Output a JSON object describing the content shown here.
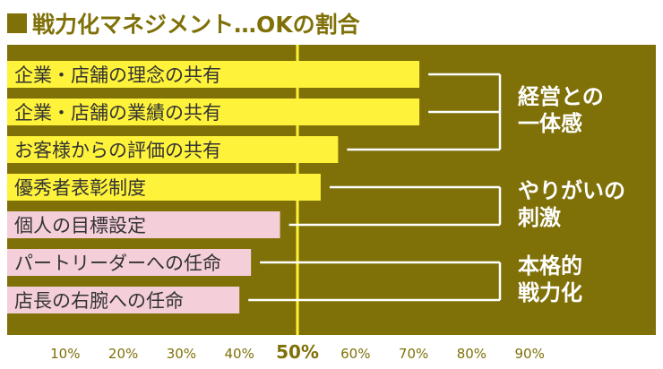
{
  "title": "戦力化マネジメント…OKの割合",
  "colors": {
    "background": "#7f7008",
    "page": "#ffffff",
    "title": "#7f7008",
    "bar_yellow": "#fef23a",
    "bar_pink": "#f4cfda",
    "midline": "#fef23a",
    "bracket": "#ffffff",
    "group_label": "#ffffff",
    "tick_label": "#7f7008",
    "bar_label": "#333333"
  },
  "chart_data": {
    "type": "bar",
    "orientation": "horizontal",
    "title": "戦力化マネジメント…OKの割合",
    "categories": [
      "企業・店舗の理念の共有",
      "企業・店舗の業績の共有",
      "お客様からの評価の共有",
      "優秀者表彰制度",
      "個人の目標設定",
      "パートリーダーへの任命",
      "店長の右腕への任命"
    ],
    "values": [
      71,
      71,
      57,
      54,
      47,
      42,
      40
    ],
    "bar_colors": [
      "yellow",
      "yellow",
      "yellow",
      "yellow",
      "pink",
      "pink",
      "pink"
    ],
    "xlim": [
      0,
      100
    ],
    "ticks": [
      "10%",
      "20%",
      "30%",
      "40%",
      "50%",
      "60%",
      "70%",
      "80%",
      "90%"
    ],
    "tick_values": [
      10,
      20,
      30,
      40,
      50,
      60,
      70,
      80,
      90
    ],
    "highlight_tick": "50%",
    "reference_line": 50,
    "groups": [
      {
        "lines": [
          "経営との",
          "一体感"
        ],
        "rows": [
          0,
          1,
          2
        ]
      },
      {
        "lines": [
          "やりがいの",
          "刺激"
        ],
        "rows": [
          3,
          4
        ]
      },
      {
        "lines": [
          "本格的",
          "戦力化"
        ],
        "rows": [
          5,
          6
        ]
      }
    ]
  }
}
